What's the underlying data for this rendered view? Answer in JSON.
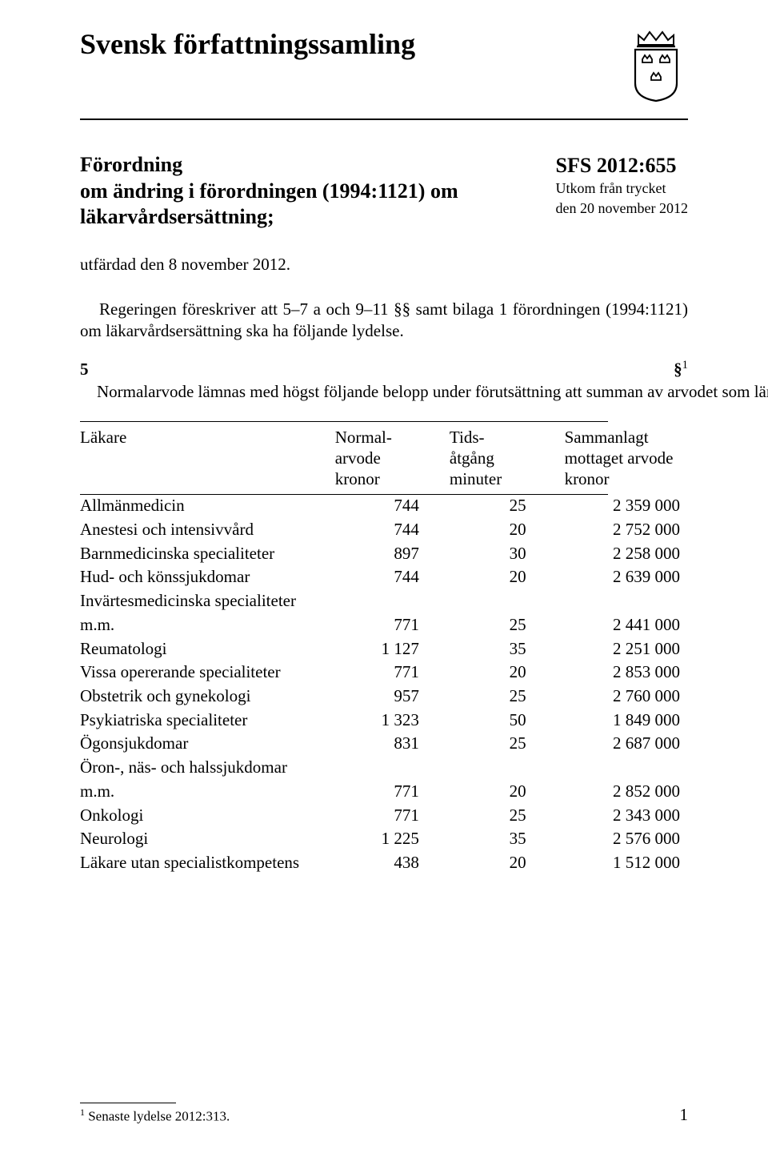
{
  "header": {
    "main_title": "Svensk författningssamling"
  },
  "ordinance": {
    "line1": "Förordning",
    "line2": "om ändring i förordningen (1994:1121) om",
    "line3": "läkarvårdsersättning;"
  },
  "sfs": {
    "number": "SFS 2012:655",
    "meta1": "Utkom från trycket",
    "meta2": "den 20 november 2012"
  },
  "issued": "utfärdad den 8 november 2012.",
  "preamble": "Regeringen föreskriver att 5–7 a och 9–11 §§ samt bilaga 1 förordningen (1994:1121) om läkarvårdsersättning ska ha följande lydelse.",
  "section5": {
    "lead": "5 §",
    "fn": "1",
    "body": "    Normalarvode lämnas med högst följande belopp under förutsättning att summan av arvodet som lämnats till en läkare och vikarie i dennes verksamhet under kalenderåret har uppgått till högst det belopp som anges i tabellen."
  },
  "table": {
    "headers": {
      "lakare": "Läkare",
      "normal_l1": "Normal-",
      "normal_l2": "arvode",
      "normal_l3": "kronor",
      "tids_l1": "Tids-",
      "tids_l2": "åtgång",
      "tids_l3": "minuter",
      "sum_l1": "Sammanlagt",
      "sum_l2": "mottaget arvode",
      "sum_l3": "kronor"
    },
    "rows": [
      {
        "name": "Allmänmedicin",
        "normal": "744",
        "tids": "25",
        "sum": "2 359 000"
      },
      {
        "name": "Anestesi och intensivvård",
        "normal": "744",
        "tids": "20",
        "sum": "2 752 000"
      },
      {
        "name": "Barnmedicinska specialiteter",
        "normal": "897",
        "tids": "30",
        "sum": "2 258 000"
      },
      {
        "name": "Hud- och könssjukdomar",
        "normal": "744",
        "tids": "20",
        "sum": "2 639 000"
      },
      {
        "name": "Invärtesmedicinska specialiteter",
        "normal": "",
        "tids": "",
        "sum": ""
      },
      {
        "name": "m.m.",
        "normal": "771",
        "tids": "25",
        "sum": "2 441 000"
      },
      {
        "name": "Reumatologi",
        "normal": "1 127",
        "tids": "35",
        "sum": "2 251 000"
      },
      {
        "name": "Vissa opererande specialiteter",
        "normal": "771",
        "tids": "20",
        "sum": "2 853 000"
      },
      {
        "name": "Obstetrik och gynekologi",
        "normal": "957",
        "tids": "25",
        "sum": "2 760 000"
      },
      {
        "name": "Psykiatriska specialiteter",
        "normal": "1 323",
        "tids": "50",
        "sum": "1 849 000"
      },
      {
        "name": "Ögonsjukdomar",
        "normal": "831",
        "tids": "25",
        "sum": "2 687 000"
      },
      {
        "name": "Öron-, näs- och halssjukdomar",
        "normal": "",
        "tids": "",
        "sum": ""
      },
      {
        "name": "m.m.",
        "normal": "771",
        "tids": "20",
        "sum": "2 852 000"
      },
      {
        "name": "Onkologi",
        "normal": "771",
        "tids": "25",
        "sum": "2 343 000"
      },
      {
        "name": "Neurologi",
        "normal": "1 225",
        "tids": "35",
        "sum": "2 576 000"
      },
      {
        "name": "Läkare utan specialistkompetens",
        "normal": "438",
        "tids": "20",
        "sum": "1 512 000"
      }
    ]
  },
  "footnote": {
    "marker": "1",
    "text": " Senaste lydelse 2012:313."
  },
  "page_number": "1"
}
